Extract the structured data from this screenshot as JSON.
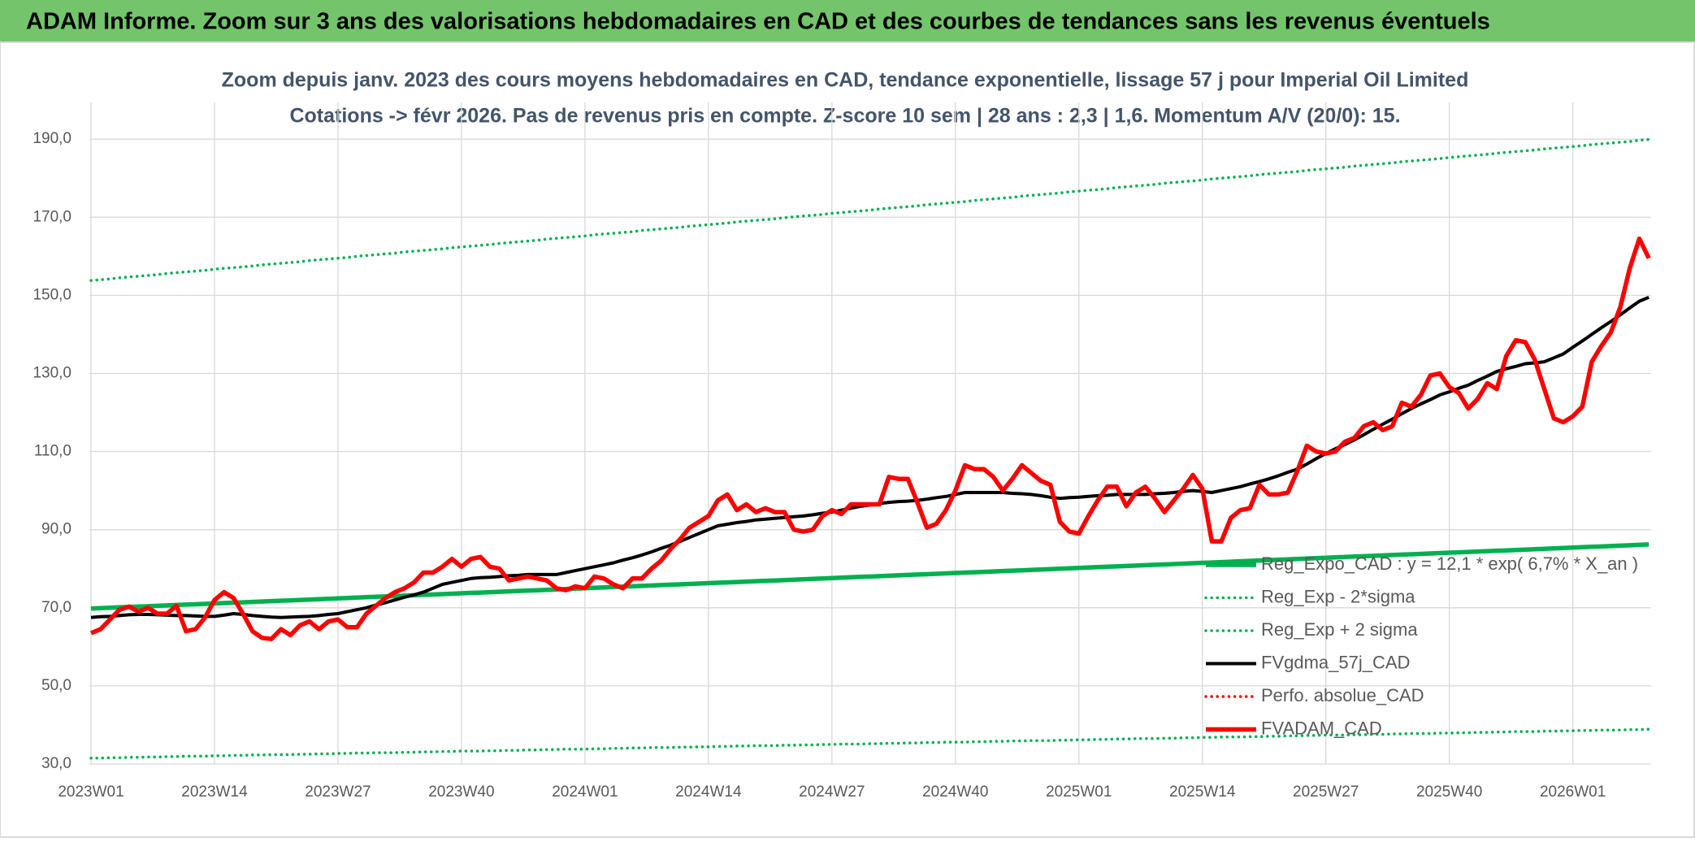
{
  "header": {
    "title": "ADAM Informe. Zoom sur 3 ans des valorisations hebdomadaires en CAD et des courbes de tendances sans les revenus éventuels"
  },
  "chart_data": {
    "type": "line",
    "title": "Zoom depuis janv. 2023 des cours moyens hebdomadaires en CAD, tendance exponentielle, lissage 57 j pour Imperial Oil Limited",
    "subtitle": "Cotations -> févr 2026. Pas de revenus pris en compte. Z-score 10 sem | 28 ans : 2,3 | 1,6. Momentum A/V (20/0): 15.",
    "categories": [
      "2023W01",
      null,
      null,
      null,
      null,
      null,
      null,
      null,
      null,
      null,
      null,
      null,
      null,
      "2023W14",
      null,
      null,
      null,
      null,
      null,
      null,
      null,
      null,
      null,
      null,
      null,
      null,
      "2023W27",
      null,
      null,
      null,
      null,
      null,
      null,
      null,
      null,
      null,
      null,
      null,
      null,
      "2023W40",
      null,
      null,
      null,
      null,
      null,
      null,
      null,
      null,
      null,
      null,
      null,
      null,
      "2024W01",
      null,
      null,
      null,
      null,
      null,
      null,
      null,
      null,
      null,
      null,
      null,
      null,
      "2024W14",
      null,
      null,
      null,
      null,
      null,
      null,
      null,
      null,
      null,
      null,
      null,
      null,
      "2024W27",
      null,
      null,
      null,
      null,
      null,
      null,
      null,
      null,
      null,
      null,
      null,
      null,
      "2024W40",
      null,
      null,
      null,
      null,
      null,
      null,
      null,
      null,
      null,
      null,
      null,
      null,
      "2025W01",
      null,
      null,
      null,
      null,
      null,
      null,
      null,
      null,
      null,
      null,
      null,
      null,
      "2025W14",
      null,
      null,
      null,
      null,
      null,
      null,
      null,
      null,
      null,
      null,
      null,
      null,
      "2025W27",
      null,
      null,
      null,
      null,
      null,
      null,
      null,
      null,
      null,
      null,
      null,
      null,
      "2025W40",
      null,
      null,
      null,
      null,
      null,
      null,
      null,
      null,
      null,
      null,
      null,
      null,
      "2026W01",
      null,
      null,
      null,
      null,
      null,
      null,
      null,
      null
    ],
    "ylim": [
      30,
      199.4
    ],
    "yticks": [
      {
        "value": 30,
        "label": "30,0"
      },
      {
        "value": 50,
        "label": "50,0"
      },
      {
        "value": 70,
        "label": "70,0"
      },
      {
        "value": 90,
        "label": "90,0"
      },
      {
        "value": 110,
        "label": "110,0"
      },
      {
        "value": 130,
        "label": "130,0"
      },
      {
        "value": 150,
        "label": "150,0"
      },
      {
        "value": 170,
        "label": "170,0"
      },
      {
        "value": 190,
        "label": "190,0"
      }
    ],
    "grid": true,
    "legend": "lower right",
    "series": [
      {
        "name": "Reg_Expo_CAD : y = 12,1 * exp( 6,7% *  X_an )",
        "color": "#00b050",
        "style": "thick",
        "values": [
          69.8,
          69.9,
          70.0,
          70.1,
          70.2,
          70.3,
          70.4,
          70.5,
          70.6,
          70.7,
          70.8,
          70.9,
          71.0,
          71.1,
          71.2,
          71.3,
          71.4,
          71.5,
          71.6,
          71.7,
          71.8,
          71.9,
          72.0,
          72.1,
          72.2,
          72.3,
          72.4,
          72.5,
          72.6,
          72.7,
          72.8,
          72.9,
          73.0,
          73.1,
          73.2,
          73.3,
          73.4,
          73.5,
          73.6,
          73.7,
          73.8,
          73.9,
          74.0,
          74.1,
          74.2,
          74.3,
          74.4,
          74.5,
          74.6,
          74.7,
          74.8,
          74.9,
          75.0,
          75.1,
          75.2,
          75.3,
          75.4,
          75.5,
          75.6,
          75.7,
          75.8,
          75.9,
          76.0,
          76.1,
          76.2,
          76.3,
          76.4,
          76.5,
          76.6,
          76.7,
          76.8,
          76.9,
          77.0,
          77.1,
          77.2,
          77.3,
          77.4,
          77.5,
          77.6,
          77.7,
          77.8,
          77.9,
          78.0,
          78.1,
          78.2,
          78.3,
          78.4,
          78.5,
          78.6,
          78.7,
          78.8,
          78.9,
          79.0,
          79.1,
          79.2,
          79.3,
          79.4,
          79.5,
          79.6,
          79.7,
          79.8,
          79.9,
          80.0,
          80.1,
          80.2,
          80.3,
          80.4,
          80.5,
          80.6,
          80.7,
          80.8,
          80.9,
          81.0,
          81.1,
          81.2,
          81.3,
          81.4,
          81.5,
          81.6,
          81.7,
          81.8,
          81.9,
          82.0,
          82.1,
          82.2,
          82.3,
          82.4,
          82.5,
          82.6,
          82.7,
          82.8,
          82.9,
          83.0,
          83.1,
          83.2,
          83.3,
          83.4,
          83.5,
          83.6,
          83.7,
          83.8,
          83.9,
          84.0,
          84.1,
          84.2,
          84.3,
          84.4,
          84.5,
          84.6,
          84.7,
          84.8,
          84.9,
          85.0,
          85.1,
          85.2,
          85.3,
          85.4,
          85.5,
          85.6,
          85.7,
          85.8,
          85.9,
          86.0,
          86.1,
          86.2
        ]
      },
      {
        "name": "Reg_Exp - 2*sigma",
        "color": "#00b050",
        "style": "dotted",
        "values": [
          31.5,
          31.5,
          31.6,
          31.6,
          31.7,
          31.7,
          31.8,
          31.8,
          31.9,
          31.9,
          32.0,
          32.0,
          32.0,
          32.1,
          32.1,
          32.2,
          32.2,
          32.3,
          32.3,
          32.4,
          32.4,
          32.4,
          32.5,
          32.5,
          32.6,
          32.6,
          32.7,
          32.7,
          32.8,
          32.8,
          32.9,
          32.9,
          32.9,
          33.0,
          33.0,
          33.1,
          33.1,
          33.2,
          33.2,
          33.3,
          33.3,
          33.3,
          33.4,
          33.4,
          33.5,
          33.5,
          33.6,
          33.6,
          33.7,
          33.7,
          33.8,
          33.8,
          33.8,
          33.9,
          33.9,
          34.0,
          34.0,
          34.1,
          34.1,
          34.2,
          34.2,
          34.2,
          34.3,
          34.3,
          34.4,
          34.4,
          34.5,
          34.5,
          34.6,
          34.6,
          34.7,
          34.7,
          34.7,
          34.8,
          34.8,
          34.9,
          34.9,
          35.0,
          35.0,
          35.1,
          35.1,
          35.1,
          35.2,
          35.2,
          35.3,
          35.3,
          35.4,
          35.4,
          35.5,
          35.5,
          35.6,
          35.6,
          35.6,
          35.7,
          35.7,
          35.8,
          35.8,
          35.9,
          35.9,
          36.0,
          36.0,
          36.0,
          36.1,
          36.1,
          36.2,
          36.2,
          36.3,
          36.3,
          36.4,
          36.4,
          36.5,
          36.5,
          36.5,
          36.6,
          36.6,
          36.7,
          36.7,
          36.8,
          36.8,
          36.9,
          36.9,
          36.9,
          37.0,
          37.0,
          37.1,
          37.1,
          37.2,
          37.2,
          37.3,
          37.3,
          37.4,
          37.4,
          37.4,
          37.5,
          37.5,
          37.6,
          37.6,
          37.7,
          37.7,
          37.8,
          37.8,
          37.8,
          37.9,
          37.9,
          38.0,
          38.0,
          38.1,
          38.1,
          38.2,
          38.2,
          38.3,
          38.3,
          38.3,
          38.4,
          38.4,
          38.5,
          38.5,
          38.6,
          38.6,
          38.7,
          38.7,
          38.7,
          38.8,
          38.8,
          38.9
        ]
      },
      {
        "name": "Reg_Exp + 2 sigma",
        "color": "#00b050",
        "style": "dotted",
        "values": [
          153.8,
          154.0,
          154.2,
          154.5,
          154.7,
          154.9,
          155.1,
          155.3,
          155.6,
          155.8,
          156.0,
          156.2,
          156.4,
          156.7,
          156.9,
          157.1,
          157.3,
          157.5,
          157.8,
          158.0,
          158.2,
          158.4,
          158.6,
          158.9,
          159.1,
          159.3,
          159.5,
          159.7,
          160.0,
          160.2,
          160.4,
          160.6,
          160.8,
          161.1,
          161.3,
          161.5,
          161.7,
          161.9,
          162.2,
          162.4,
          162.6,
          162.8,
          163.0,
          163.3,
          163.5,
          163.7,
          163.9,
          164.1,
          164.4,
          164.6,
          164.8,
          165.0,
          165.2,
          165.5,
          165.7,
          165.9,
          166.1,
          166.3,
          166.6,
          166.8,
          167.0,
          167.2,
          167.4,
          167.7,
          167.9,
          168.1,
          168.3,
          168.5,
          168.8,
          169.0,
          169.2,
          169.4,
          169.6,
          169.9,
          170.1,
          170.3,
          170.5,
          170.7,
          171.0,
          171.2,
          171.4,
          171.6,
          171.8,
          172.1,
          172.3,
          172.5,
          172.7,
          172.9,
          173.2,
          173.4,
          173.6,
          173.8,
          174.0,
          174.3,
          174.5,
          174.7,
          174.9,
          175.1,
          175.4,
          175.6,
          175.8,
          176.0,
          176.2,
          176.5,
          176.7,
          176.9,
          177.1,
          177.3,
          177.6,
          177.8,
          178.0,
          178.2,
          178.4,
          178.7,
          178.9,
          179.1,
          179.3,
          179.5,
          179.8,
          180.0,
          180.2,
          180.4,
          180.6,
          180.9,
          181.1,
          181.3,
          181.5,
          181.7,
          182.0,
          182.2,
          182.4,
          182.6,
          182.8,
          183.1,
          183.3,
          183.5,
          183.7,
          183.9,
          184.2,
          184.4,
          184.6,
          184.8,
          185.0,
          185.3,
          185.5,
          185.7,
          185.9,
          186.1,
          186.4,
          186.6,
          186.8,
          187.0,
          187.2,
          187.5,
          187.7,
          187.9,
          188.1,
          188.3,
          188.6,
          188.8,
          189.0,
          189.2,
          189.4,
          189.7,
          189.9
        ]
      },
      {
        "name": "FVgdma_57j_CAD",
        "color": "#000000",
        "style": "solid",
        "values": [
          67.5,
          67.7,
          67.8,
          68.0,
          68.2,
          68.3,
          68.3,
          68.2,
          68.1,
          68.0,
          68.0,
          67.9,
          67.8,
          67.8,
          68.1,
          68.5,
          68.3,
          68.0,
          67.8,
          67.6,
          67.5,
          67.6,
          67.7,
          67.8,
          68.0,
          68.3,
          68.5,
          69.0,
          69.5,
          70.0,
          70.7,
          71.3,
          72.0,
          72.7,
          73.3,
          74.0,
          75.0,
          76.0,
          76.5,
          77.0,
          77.5,
          77.7,
          77.8,
          78.0,
          78.2,
          78.3,
          78.5,
          78.5,
          78.5,
          78.5,
          79.0,
          79.5,
          80.0,
          80.5,
          81.0,
          81.5,
          82.2,
          82.8,
          83.5,
          84.3,
          85.2,
          86.0,
          87.0,
          88.0,
          89.0,
          90.0,
          91.0,
          91.4,
          91.8,
          92.1,
          92.5,
          92.7,
          92.9,
          93.1,
          93.3,
          93.5,
          93.8,
          94.2,
          94.5,
          95.0,
          95.5,
          96.0,
          96.3,
          96.7,
          97.0,
          97.2,
          97.3,
          97.5,
          97.8,
          98.2,
          98.5,
          99.0,
          99.5,
          99.5,
          99.5,
          99.5,
          99.5,
          99.3,
          99.2,
          99.0,
          98.7,
          98.3,
          98.0,
          98.2,
          98.3,
          98.5,
          98.7,
          98.8,
          99.0,
          99.0,
          99.0,
          99.0,
          99.2,
          99.3,
          99.5,
          99.8,
          100.0,
          99.8,
          99.5,
          100.0,
          100.5,
          101.0,
          101.7,
          102.3,
          103.0,
          103.8,
          104.7,
          105.5,
          106.8,
          108.2,
          109.5,
          110.7,
          111.8,
          113.0,
          114.3,
          115.7,
          117.0,
          118.3,
          119.7,
          121.0,
          122.2,
          123.3,
          124.5,
          125.3,
          126.2,
          127.0,
          128.2,
          129.3,
          130.5,
          131.2,
          131.8,
          132.5,
          132.7,
          133.0,
          134.0,
          135.0,
          136.7,
          138.3,
          140.0,
          141.7,
          143.3,
          145.0,
          146.8,
          148.5,
          149.5
        ]
      },
      {
        "name": "Perfo. absolue_CAD",
        "color": "#ff0000",
        "style": "dotted"
      },
      {
        "name": "FVADAM_CAD",
        "color": "#ff0000",
        "style": "thick",
        "values": [
          63.5,
          64.5,
          67.0,
          69.5,
          70.3,
          69.0,
          70.0,
          68.5,
          68.5,
          70.5,
          64.0,
          64.5,
          67.5,
          72.0,
          74.0,
          72.5,
          68.5,
          64.0,
          62.3,
          62.0,
          64.5,
          63.0,
          65.5,
          66.5,
          64.5,
          66.5,
          67.0,
          65.0,
          65.0,
          68.5,
          70.5,
          72.5,
          74.0,
          75.0,
          76.5,
          79.0,
          79.0,
          80.5,
          82.5,
          80.5,
          82.5,
          83.0,
          80.5,
          80.0,
          77.0,
          77.5,
          78.0,
          77.5,
          77.0,
          75.0,
          74.5,
          75.5,
          75.0,
          78.0,
          77.5,
          76.0,
          75.0,
          77.5,
          77.5,
          80.0,
          82.0,
          85.0,
          87.5,
          90.5,
          92.0,
          93.5,
          97.5,
          99.0,
          95.0,
          96.5,
          94.5,
          95.5,
          94.5,
          94.5,
          90.0,
          89.5,
          90.0,
          93.5,
          95.0,
          94.0,
          96.5,
          96.5,
          96.5,
          96.5,
          103.5,
          103.0,
          103.0,
          97.0,
          90.5,
          91.5,
          95.0,
          100.0,
          106.5,
          105.5,
          105.5,
          103.5,
          100.0,
          103.0,
          106.5,
          104.5,
          102.5,
          101.5,
          92.0,
          89.5,
          89.0,
          93.5,
          97.5,
          101.0,
          101.0,
          96.0,
          99.5,
          101.0,
          98.0,
          94.5,
          97.5,
          100.5,
          104.0,
          100.5,
          87.0,
          87.0,
          93.0,
          95.0,
          95.5,
          101.5,
          99.0,
          99.0,
          99.5,
          105.0,
          111.5,
          110.0,
          109.5,
          110.0,
          112.5,
          113.5,
          116.5,
          117.5,
          115.5,
          116.5,
          122.5,
          121.5,
          124.5,
          129.5,
          130.0,
          126.5,
          125.0,
          121.0,
          123.5,
          127.5,
          126.0,
          134.5,
          138.5,
          138.0,
          133.5,
          126.0,
          118.5,
          117.5,
          119.0,
          121.5,
          133.0,
          137.0,
          140.5,
          147.0,
          157.0,
          164.5,
          159.5
        ]
      }
    ]
  }
}
